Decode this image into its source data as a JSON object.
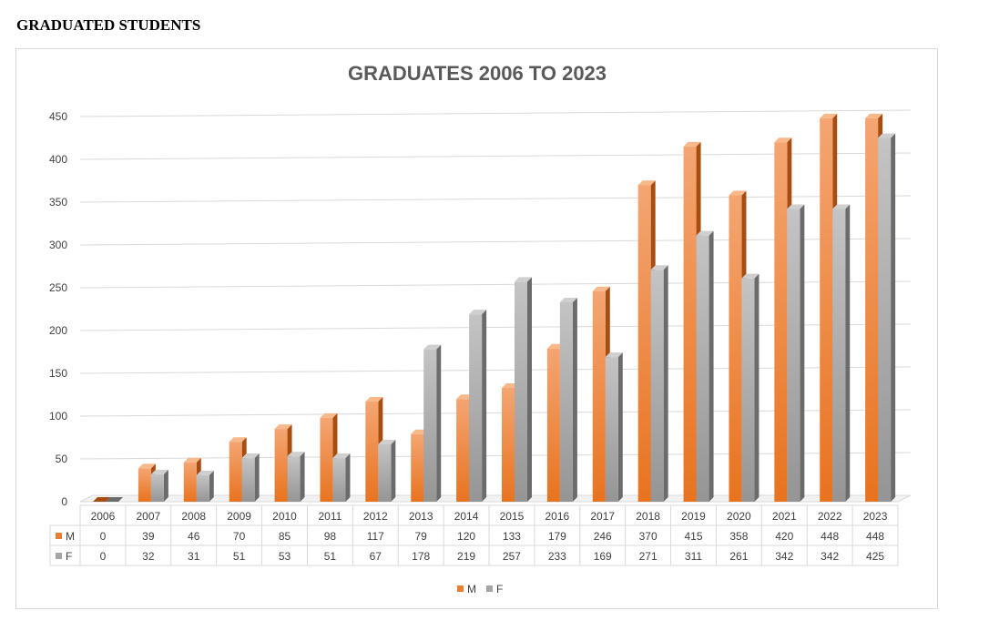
{
  "page": {
    "heading": "GRADUATED STUDENTS"
  },
  "chart_data": {
    "type": "bar",
    "title": "GRADUATES 2006 TO 2023",
    "categories": [
      "2006",
      "2007",
      "2008",
      "2009",
      "2010",
      "2011",
      "2012",
      "2013",
      "2014",
      "2015",
      "2016",
      "2017",
      "2018",
      "2019",
      "2020",
      "2021",
      "2022",
      "2023"
    ],
    "series": [
      {
        "name": "M",
        "color": "#ed7d31",
        "values": [
          0,
          39,
          46,
          70,
          85,
          98,
          117,
          79,
          120,
          133,
          179,
          246,
          370,
          415,
          358,
          420,
          448,
          448
        ]
      },
      {
        "name": "F",
        "color": "#a5a5a5",
        "values": [
          0,
          32,
          31,
          51,
          53,
          51,
          67,
          178,
          219,
          257,
          233,
          169,
          271,
          311,
          261,
          342,
          342,
          425
        ]
      }
    ],
    "ylim": [
      0,
      450
    ],
    "yticks": [
      0,
      50,
      100,
      150,
      200,
      250,
      300,
      350,
      400,
      450
    ],
    "grid": true,
    "style": "3d-clustered-column",
    "data_table": true,
    "legend_position": "bottom"
  }
}
